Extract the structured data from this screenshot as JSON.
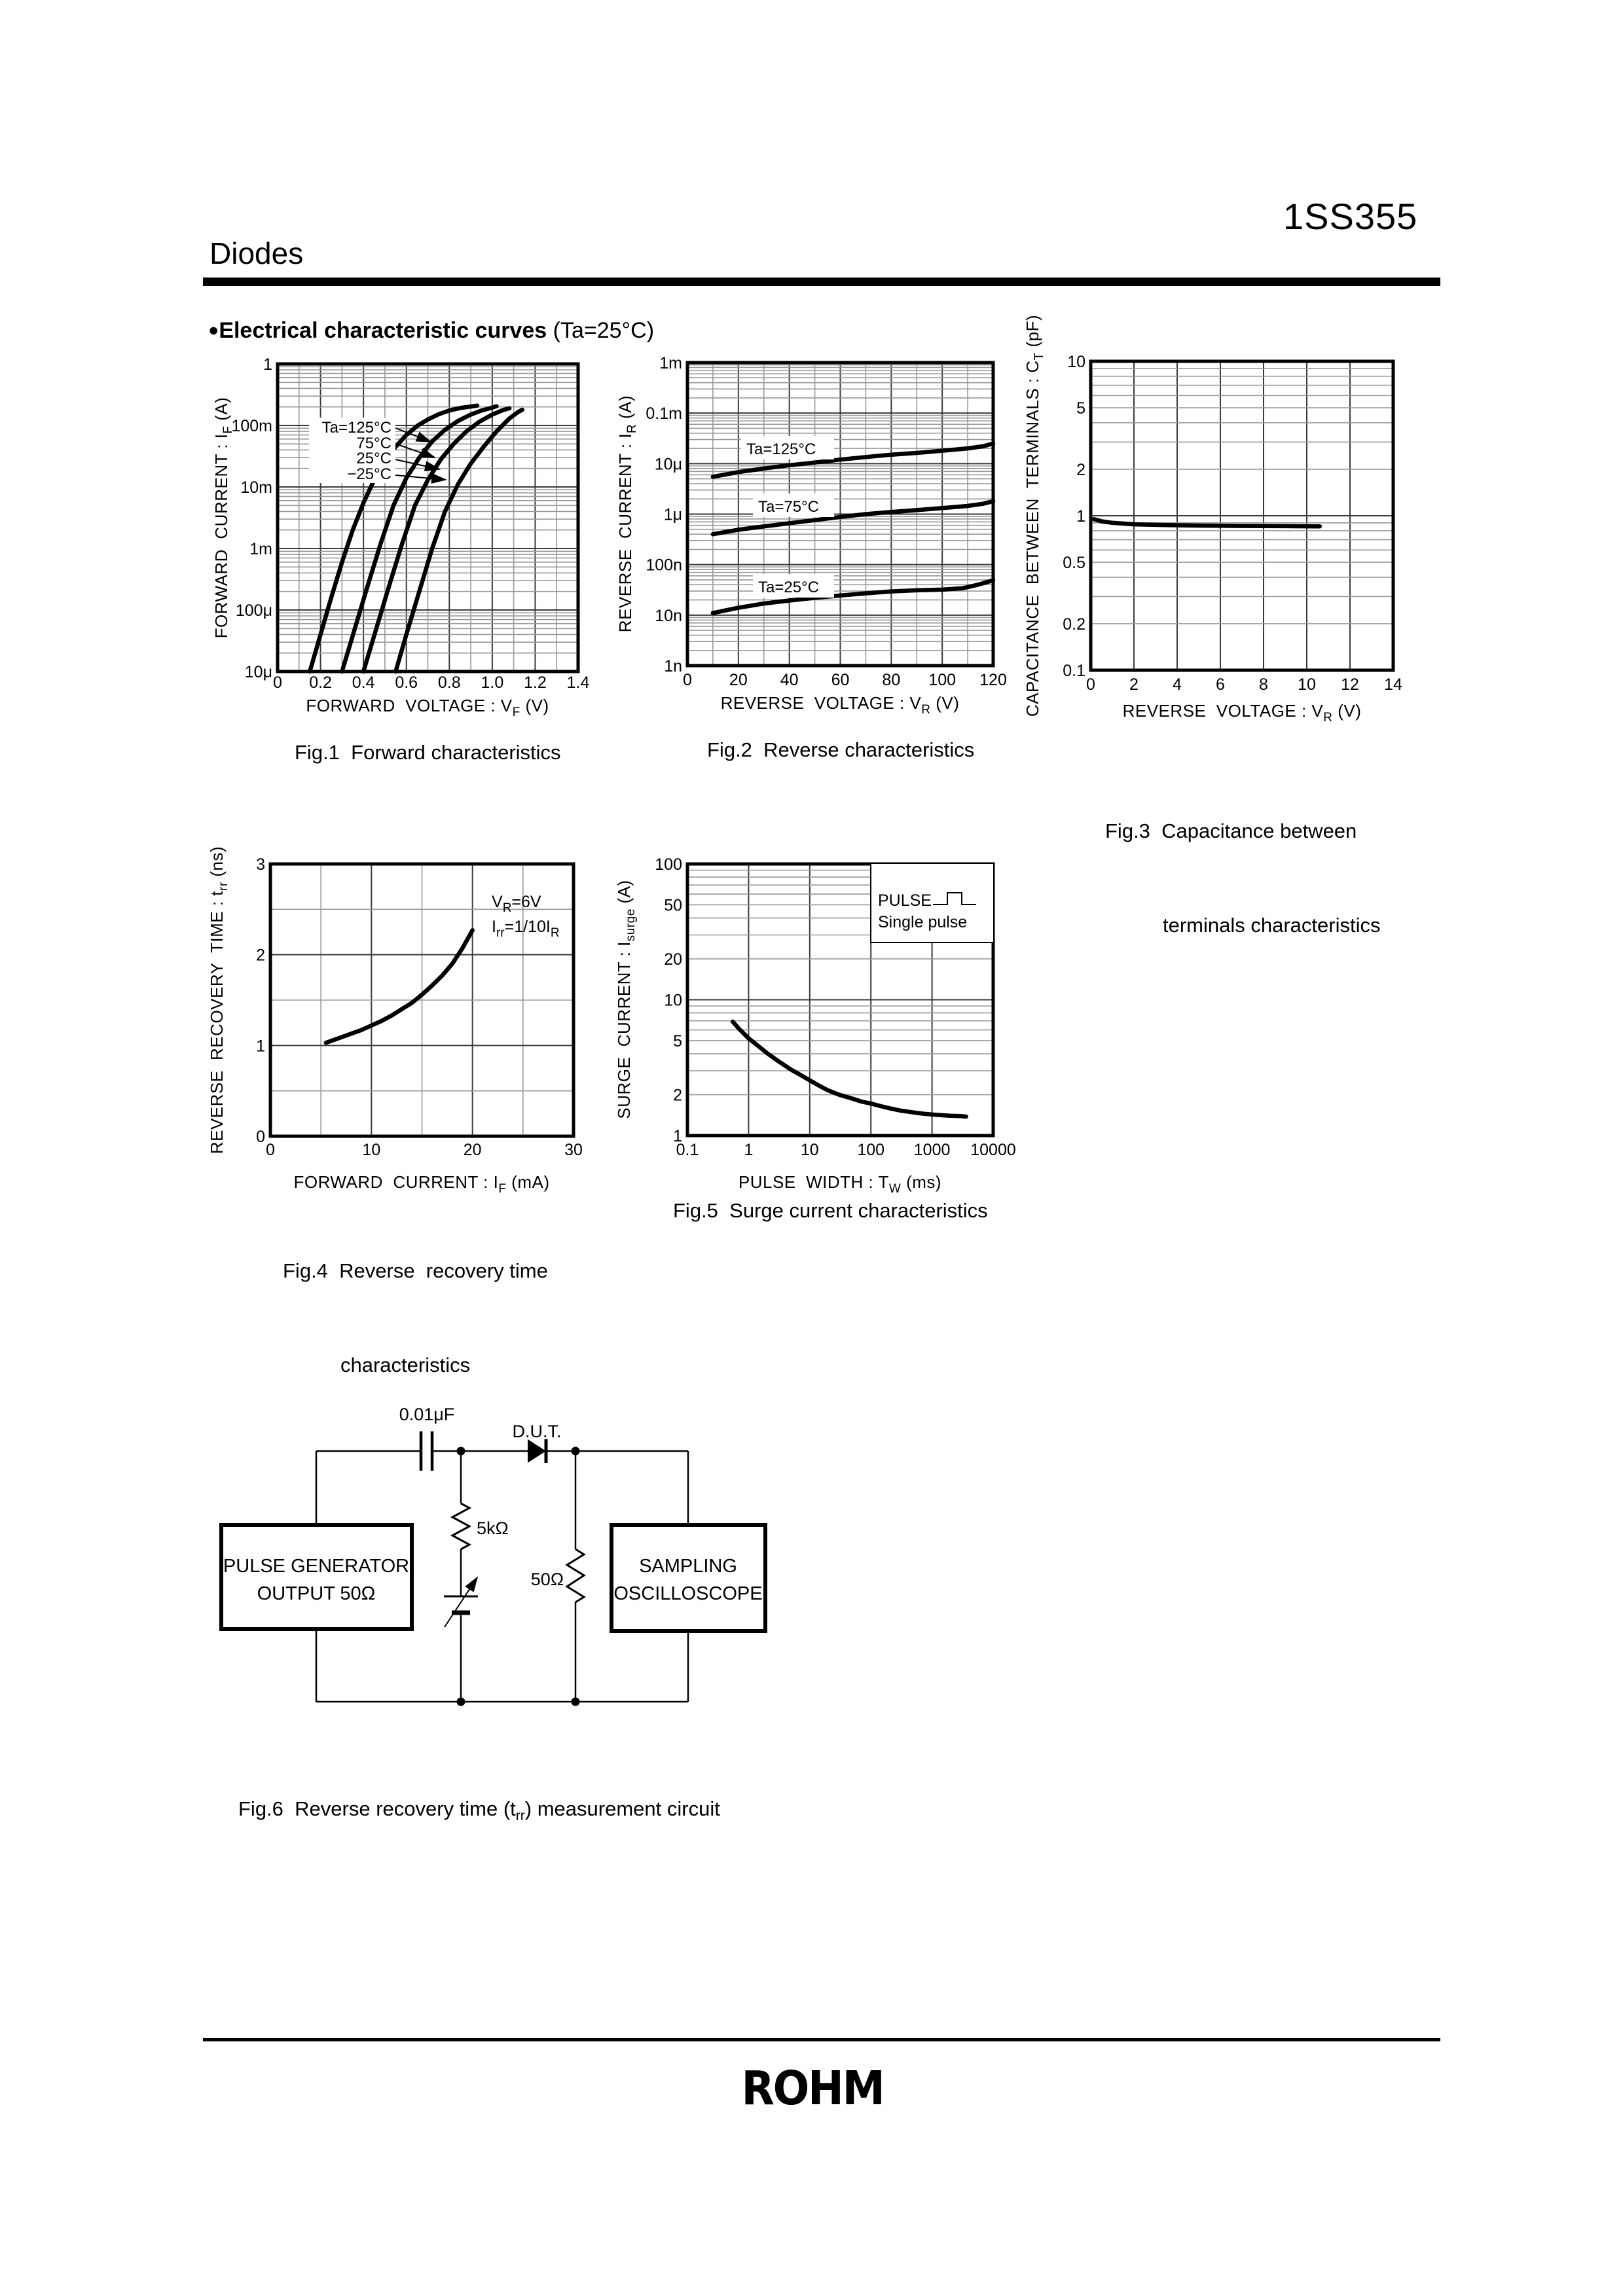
{
  "header": {
    "part_number": "1SS355",
    "category": "Diodes"
  },
  "section": {
    "bullet": "●",
    "title_bold": "Electrical characteristic curves",
    "title_normal": " (Ta=25°C)"
  },
  "figures": {
    "fig1": {
      "caption": "Fig.1  Forward characteristics",
      "x_title": [
        "FORWARD  VOLTAGE : V",
        "F",
        " (V)"
      ],
      "y_title": [
        "FORWARD  CURRENT : I",
        "F",
        " (A)"
      ],
      "x": {
        "type": "linear",
        "min": 0,
        "max": 1.4,
        "grid_step": 0.1,
        "ticks": [
          {
            "v": 0,
            "l": "0"
          },
          {
            "v": 0.2,
            "l": "0.2"
          },
          {
            "v": 0.4,
            "l": "0.4"
          },
          {
            "v": 0.6,
            "l": "0.6"
          },
          {
            "v": 0.8,
            "l": "0.8"
          },
          {
            "v": 1.0,
            "l": "1.0"
          },
          {
            "v": 1.2,
            "l": "1.2"
          },
          {
            "v": 1.4,
            "l": "1.4"
          }
        ]
      },
      "y": {
        "type": "log",
        "min": 1e-05,
        "max": 1,
        "ticks": [
          {
            "v": 1,
            "l": "1"
          },
          {
            "v": 0.1,
            "l": "100m"
          },
          {
            "v": 0.01,
            "l": "10m"
          },
          {
            "v": 0.001,
            "l": "1m"
          },
          {
            "v": 0.0001,
            "l": "100μ"
          },
          {
            "v": 1e-05,
            "l": "10μ"
          }
        ]
      },
      "series": [
        {
          "name": "Ta=125°C",
          "points": [
            [
              0.15,
              1e-05
            ],
            [
              0.2,
              4e-05
            ],
            [
              0.25,
              0.00016
            ],
            [
              0.3,
              0.0006
            ],
            [
              0.35,
              0.002
            ],
            [
              0.4,
              0.0055
            ],
            [
              0.45,
              0.013
            ],
            [
              0.5,
              0.026
            ],
            [
              0.55,
              0.045
            ],
            [
              0.6,
              0.07
            ],
            [
              0.65,
              0.098
            ],
            [
              0.7,
              0.125
            ],
            [
              0.75,
              0.152
            ],
            [
              0.8,
              0.175
            ],
            [
              0.85,
              0.192
            ],
            [
              0.9,
              0.203
            ],
            [
              0.93,
              0.21
            ]
          ]
        },
        {
          "name": "75°C",
          "points": [
            [
              0.3,
              1e-05
            ],
            [
              0.36,
              5e-05
            ],
            [
              0.42,
              0.00025
            ],
            [
              0.48,
              0.0012
            ],
            [
              0.54,
              0.005
            ],
            [
              0.6,
              0.014
            ],
            [
              0.66,
              0.03
            ],
            [
              0.72,
              0.055
            ],
            [
              0.78,
              0.085
            ],
            [
              0.84,
              0.118
            ],
            [
              0.9,
              0.15
            ],
            [
              0.95,
              0.175
            ],
            [
              1.0,
              0.195
            ],
            [
              1.02,
              0.205
            ]
          ]
        },
        {
          "name": "25°C",
          "points": [
            [
              0.4,
              1e-05
            ],
            [
              0.46,
              5e-05
            ],
            [
              0.52,
              0.00025
            ],
            [
              0.58,
              0.0012
            ],
            [
              0.64,
              0.005
            ],
            [
              0.7,
              0.013
            ],
            [
              0.76,
              0.028
            ],
            [
              0.82,
              0.05
            ],
            [
              0.88,
              0.08
            ],
            [
              0.94,
              0.115
            ],
            [
              1.0,
              0.15
            ],
            [
              1.05,
              0.178
            ],
            [
              1.08,
              0.19
            ]
          ]
        },
        {
          "name": "−25°C",
          "points": [
            [
              0.55,
              1e-05
            ],
            [
              0.6,
              4e-05
            ],
            [
              0.66,
              0.0002
            ],
            [
              0.72,
              0.001
            ],
            [
              0.78,
              0.004
            ],
            [
              0.84,
              0.011
            ],
            [
              0.9,
              0.024
            ],
            [
              0.96,
              0.045
            ],
            [
              1.02,
              0.08
            ],
            [
              1.08,
              0.13
            ],
            [
              1.12,
              0.165
            ],
            [
              1.14,
              0.18
            ]
          ]
        }
      ]
    },
    "fig2": {
      "caption": "Fig.2  Reverse characteristics",
      "x_title": [
        "REVERSE  VOLTAGE : V",
        "R",
        " (V)"
      ],
      "y_title": [
        "REVERSE  CURRENT : I",
        "R",
        " (A)"
      ],
      "x": {
        "type": "linear",
        "min": 0,
        "max": 120,
        "grid_step": 10,
        "ticks": [
          {
            "v": 0,
            "l": "0"
          },
          {
            "v": 20,
            "l": "20"
          },
          {
            "v": 40,
            "l": "40"
          },
          {
            "v": 60,
            "l": "60"
          },
          {
            "v": 80,
            "l": "80"
          },
          {
            "v": 100,
            "l": "100"
          },
          {
            "v": 120,
            "l": "120"
          }
        ]
      },
      "y": {
        "type": "log",
        "min": 1e-09,
        "max": 0.001,
        "ticks": [
          {
            "v": 0.001,
            "l": "1m"
          },
          {
            "v": 0.0001,
            "l": "0.1m"
          },
          {
            "v": 1e-05,
            "l": "10μ"
          },
          {
            "v": 1e-06,
            "l": "1μ"
          },
          {
            "v": 1e-07,
            "l": "100n"
          },
          {
            "v": 1e-08,
            "l": "10n"
          },
          {
            "v": 1e-09,
            "l": "1n"
          }
        ]
      },
      "series": [
        {
          "name": "Ta=125°C",
          "points": [
            [
              10,
              5.5e-06
            ],
            [
              20,
              6.8e-06
            ],
            [
              30,
              8e-06
            ],
            [
              40,
              9.3e-06
            ],
            [
              50,
              1.05e-05
            ],
            [
              60,
              1.2e-05
            ],
            [
              70,
              1.35e-05
            ],
            [
              80,
              1.5e-05
            ],
            [
              90,
              1.63e-05
            ],
            [
              100,
              1.8e-05
            ],
            [
              110,
              2e-05
            ],
            [
              116,
              2.2e-05
            ],
            [
              120,
              2.5e-05
            ]
          ]
        },
        {
          "name": "Ta=75°C",
          "points": [
            [
              10,
              4e-07
            ],
            [
              20,
              4.9e-07
            ],
            [
              30,
              5.7e-07
            ],
            [
              40,
              6.6e-07
            ],
            [
              50,
              7.6e-07
            ],
            [
              60,
              8.8e-07
            ],
            [
              70,
              1e-06
            ],
            [
              80,
              1.1e-06
            ],
            [
              90,
              1.2e-06
            ],
            [
              100,
              1.32e-06
            ],
            [
              110,
              1.45e-06
            ],
            [
              116,
              1.6e-06
            ],
            [
              120,
              1.8e-06
            ]
          ]
        },
        {
          "name": "Ta=25°C",
          "points": [
            [
              10,
              1.1e-08
            ],
            [
              20,
              1.4e-08
            ],
            [
              30,
              1.7e-08
            ],
            [
              40,
              1.95e-08
            ],
            [
              50,
              2.2e-08
            ],
            [
              60,
              2.45e-08
            ],
            [
              70,
              2.7e-08
            ],
            [
              80,
              2.95e-08
            ],
            [
              90,
              3.1e-08
            ],
            [
              100,
              3.2e-08
            ],
            [
              108,
              3.4e-08
            ],
            [
              114,
              4e-08
            ],
            [
              120,
              4.9e-08
            ]
          ]
        }
      ]
    },
    "fig3": {
      "caption_line1": "Fig.3  Capacitance between",
      "caption_line2": "terminals characteristics",
      "x_title": [
        "REVERSE  VOLTAGE : V",
        "R",
        " (V)"
      ],
      "y_title": [
        "CAPACITANCE  BETWEEN  TERMINALS : C",
        "T",
        " (pF)"
      ],
      "x": {
        "type": "linear",
        "min": 0,
        "max": 14,
        "grid_step": 2,
        "ticks": [
          {
            "v": 0,
            "l": "0"
          },
          {
            "v": 2,
            "l": "2"
          },
          {
            "v": 4,
            "l": "4"
          },
          {
            "v": 6,
            "l": "6"
          },
          {
            "v": 8,
            "l": "8"
          },
          {
            "v": 10,
            "l": "10"
          },
          {
            "v": 12,
            "l": "12"
          },
          {
            "v": 14,
            "l": "14"
          }
        ]
      },
      "y": {
        "type": "log",
        "min": 0.1,
        "max": 10,
        "ticks": [
          {
            "v": 10,
            "l": "10"
          },
          {
            "v": 5,
            "l": "5"
          },
          {
            "v": 2,
            "l": "2"
          },
          {
            "v": 1,
            "l": "1"
          },
          {
            "v": 0.5,
            "l": "0.5"
          },
          {
            "v": 0.2,
            "l": "0.2"
          },
          {
            "v": 0.1,
            "l": "0.1"
          }
        ]
      },
      "series": [
        {
          "points": [
            [
              0.15,
              0.95
            ],
            [
              0.5,
              0.92
            ],
            [
              1,
              0.9
            ],
            [
              2,
              0.88
            ],
            [
              3,
              0.873
            ],
            [
              4,
              0.868
            ],
            [
              5,
              0.864
            ],
            [
              6,
              0.861
            ],
            [
              7,
              0.859
            ],
            [
              8,
              0.857
            ],
            [
              9,
              0.856
            ],
            [
              10,
              0.855
            ],
            [
              10.6,
              0.854
            ]
          ]
        }
      ]
    },
    "fig4": {
      "caption_line1": "Fig.4  Reverse  recovery time",
      "caption_line2": "characteristics",
      "note": {
        "l1": [
          "V",
          "R",
          "=6V"
        ],
        "l2": [
          "I",
          "rr",
          "=1/10I",
          "R"
        ]
      },
      "x_title": [
        "FORWARD  CURRENT : I",
        "F",
        " (mA)"
      ],
      "y_title": [
        "REVERSE  RECOVERY  TIME : t",
        "rr",
        " (ns)"
      ],
      "x": {
        "type": "linear",
        "min": 0,
        "max": 30,
        "grid_step": 5,
        "ticks": [
          {
            "v": 0,
            "l": "0"
          },
          {
            "v": 10,
            "l": "10"
          },
          {
            "v": 20,
            "l": "20"
          },
          {
            "v": 30,
            "l": "30"
          }
        ]
      },
      "y": {
        "type": "linear",
        "min": 0,
        "max": 3,
        "grid_step": 0.5,
        "ticks": [
          {
            "v": 0,
            "l": "0"
          },
          {
            "v": 1,
            "l": "1"
          },
          {
            "v": 2,
            "l": "2"
          },
          {
            "v": 3,
            "l": "3"
          }
        ]
      },
      "series": [
        {
          "points": [
            [
              5.5,
              1.03
            ],
            [
              7,
              1.09
            ],
            [
              8,
              1.13
            ],
            [
              9,
              1.17
            ],
            [
              10,
              1.22
            ],
            [
              11,
              1.27
            ],
            [
              12,
              1.33
            ],
            [
              13,
              1.4
            ],
            [
              14,
              1.47
            ],
            [
              15,
              1.56
            ],
            [
              16,
              1.66
            ],
            [
              17,
              1.77
            ],
            [
              18,
              1.9
            ],
            [
              19,
              2.07
            ],
            [
              20,
              2.27
            ]
          ]
        }
      ]
    },
    "fig5": {
      "caption": "Fig.5  Surge current characteristics",
      "legend": {
        "title": "PULSE",
        "subtitle": "Single pulse"
      },
      "x_title": [
        "PULSE  WIDTH : T",
        "W",
        " (ms)"
      ],
      "y_title": [
        "SURGE  CURRENT : I",
        "surge",
        " (A)"
      ],
      "x": {
        "type": "log",
        "min": 0.1,
        "max": 10000,
        "minor": false,
        "ticks": [
          {
            "v": 0.1,
            "l": "0.1"
          },
          {
            "v": 1,
            "l": "1"
          },
          {
            "v": 10,
            "l": "10"
          },
          {
            "v": 100,
            "l": "100"
          },
          {
            "v": 1000,
            "l": "1000"
          },
          {
            "v": 10000,
            "l": "10000"
          }
        ]
      },
      "y": {
        "type": "log",
        "min": 1,
        "max": 100,
        "ticks": [
          {
            "v": 100,
            "l": "100"
          },
          {
            "v": 50,
            "l": "50"
          },
          {
            "v": 20,
            "l": "20"
          },
          {
            "v": 10,
            "l": "10"
          },
          {
            "v": 5,
            "l": "5"
          },
          {
            "v": 2,
            "l": "2"
          },
          {
            "v": 1,
            "l": "1"
          }
        ]
      },
      "series": [
        {
          "points": [
            [
              0.55,
              6.9
            ],
            [
              0.7,
              6.1
            ],
            [
              1,
              5.2
            ],
            [
              1.5,
              4.5
            ],
            [
              2,
              4.05
            ],
            [
              3,
              3.55
            ],
            [
              5,
              3.05
            ],
            [
              7,
              2.8
            ],
            [
              10,
              2.55
            ],
            [
              15,
              2.3
            ],
            [
              20,
              2.15
            ],
            [
              30,
              2.0
            ],
            [
              50,
              1.87
            ],
            [
              70,
              1.78
            ],
            [
              100,
              1.72
            ],
            [
              150,
              1.64
            ],
            [
              200,
              1.59
            ],
            [
              300,
              1.53
            ],
            [
              500,
              1.48
            ],
            [
              700,
              1.45
            ],
            [
              1000,
              1.43
            ],
            [
              1500,
              1.41
            ],
            [
              2000,
              1.4
            ],
            [
              3000,
              1.39
            ],
            [
              3600,
              1.38
            ]
          ]
        }
      ]
    },
    "fig6": {
      "caption": [
        "Fig.6  Reverse recovery time (t",
        "rr",
        ") measurement circuit"
      ],
      "labels": {
        "cap": "0.01μF",
        "dut": "D.U.T.",
        "r1": "5kΩ",
        "r2": "50Ω",
        "box1_line1": "PULSE GENERATOR",
        "box1_line2": "OUTPUT 50Ω",
        "box2_line1": "SAMPLING",
        "box2_line2": "OSCILLOSCOPE"
      }
    }
  },
  "footer": {
    "logo": "ROHM"
  }
}
